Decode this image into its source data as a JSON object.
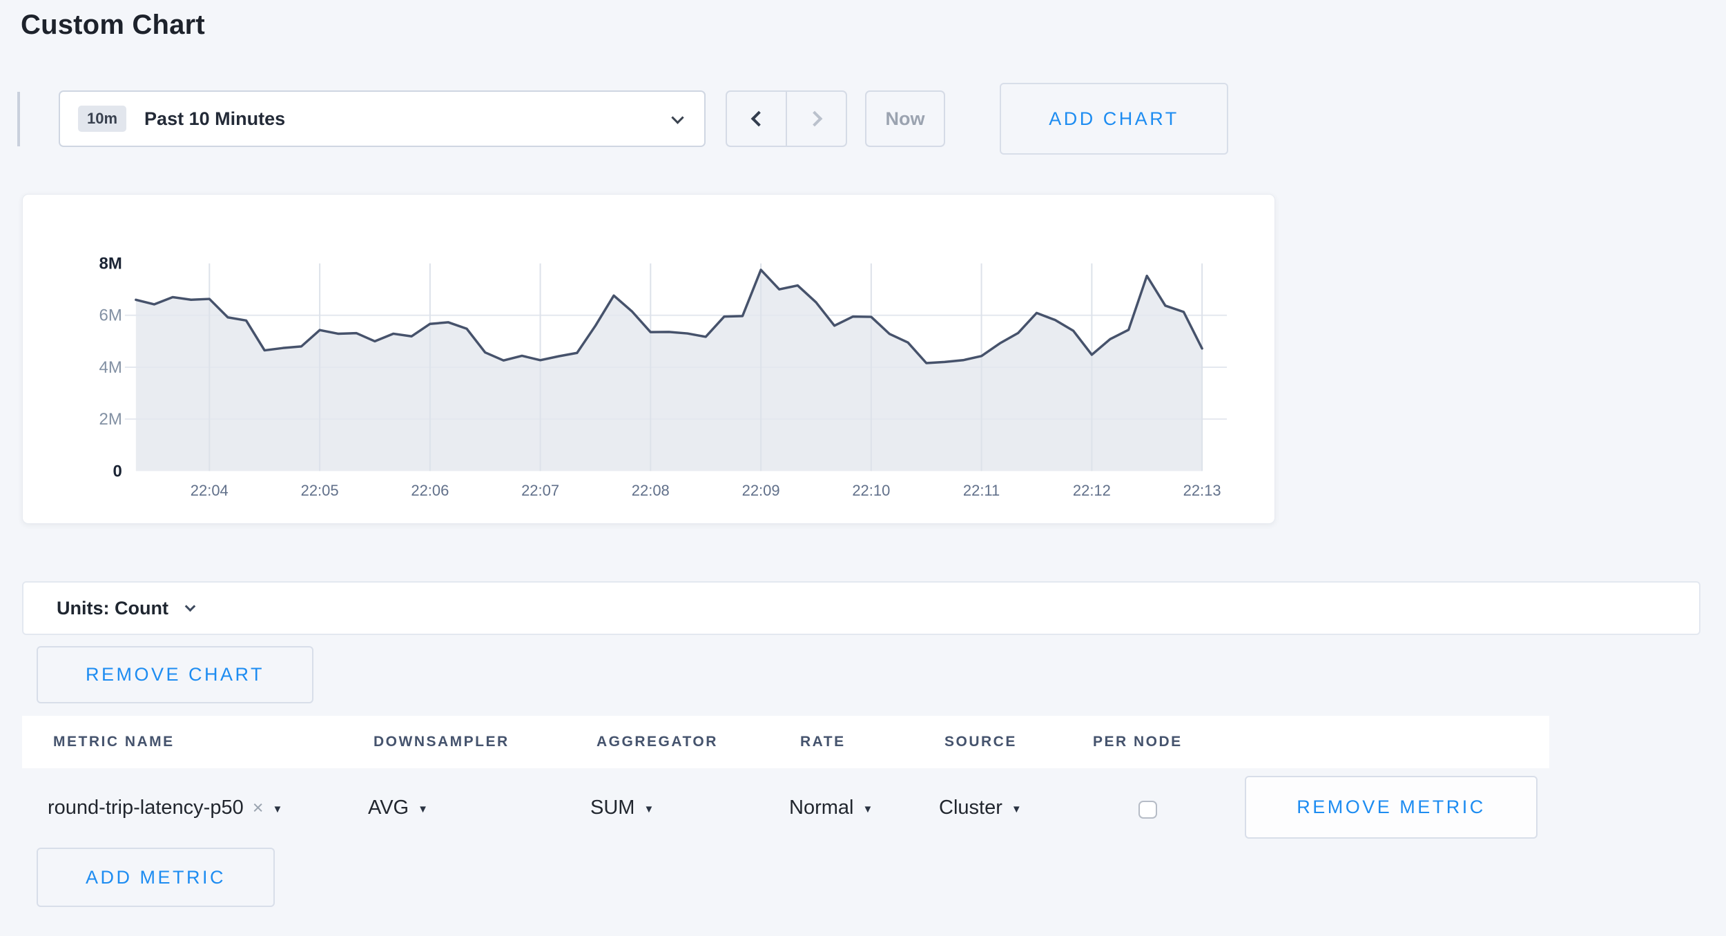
{
  "page": {
    "title": "Custom Chart",
    "accent_color": "#1d8cf1",
    "background_color": "#f4f6fa"
  },
  "icons": {
    "caret_down": "▼",
    "clear": "×"
  },
  "toolbar": {
    "time_range": {
      "badge": "10m",
      "label": "Past 10 Minutes"
    },
    "now_label": "Now",
    "add_chart_label": "ADD CHART"
  },
  "units_bar": {
    "label": "Units: Count"
  },
  "remove_chart_label": "REMOVE CHART",
  "metrics_table": {
    "columns": [
      "METRIC NAME",
      "DOWNSAMPLER",
      "AGGREGATOR",
      "RATE",
      "SOURCE",
      "PER NODE"
    ],
    "rows": [
      {
        "metric_name": "round-trip-latency-p50",
        "downsampler": "AVG",
        "aggregator": "SUM",
        "rate": "Normal",
        "source": "Cluster",
        "per_node_checked": false,
        "remove_label": "REMOVE METRIC"
      }
    ],
    "add_metric_label": "ADD METRIC"
  },
  "chart_data": {
    "type": "area",
    "title": "",
    "xlabel": "",
    "ylabel": "count",
    "unit": "millions",
    "y_max": 8,
    "y_grid": [
      2,
      4,
      6
    ],
    "y_tick_labels": [
      {
        "label": "8M",
        "value": 8,
        "strong": true
      },
      {
        "label": "6M",
        "value": 6,
        "strong": false
      },
      {
        "label": "4M",
        "value": 4,
        "strong": false
      },
      {
        "label": "2M",
        "value": 2,
        "strong": false
      },
      {
        "label": "0",
        "value": 0,
        "strong": true
      }
    ],
    "x_ticks": [
      {
        "label": "22:04",
        "time": "22:04:00"
      },
      {
        "label": "22:05",
        "time": "22:05:00"
      },
      {
        "label": "22:06",
        "time": "22:06:00"
      },
      {
        "label": "22:07",
        "time": "22:07:00"
      },
      {
        "label": "22:08",
        "time": "22:08:00"
      },
      {
        "label": "22:09",
        "time": "22:09:00"
      },
      {
        "label": "22:10",
        "time": "22:10:00"
      },
      {
        "label": "22:11",
        "time": "22:11:00"
      },
      {
        "label": "22:12",
        "time": "22:12:00"
      },
      {
        "label": "22:13",
        "time": "22:13:00"
      }
    ],
    "x": [
      "22:03:20",
      "22:03:30",
      "22:03:40",
      "22:03:50",
      "22:04:00",
      "22:04:10",
      "22:04:20",
      "22:04:30",
      "22:04:40",
      "22:04:50",
      "22:05:00",
      "22:05:10",
      "22:05:20",
      "22:05:30",
      "22:05:40",
      "22:05:50",
      "22:06:00",
      "22:06:10",
      "22:06:20",
      "22:06:30",
      "22:06:40",
      "22:06:50",
      "22:07:00",
      "22:07:10",
      "22:07:20",
      "22:07:30",
      "22:07:40",
      "22:07:50",
      "22:08:00",
      "22:08:10",
      "22:08:20",
      "22:08:30",
      "22:08:40",
      "22:08:50",
      "22:09:00",
      "22:09:10",
      "22:09:20",
      "22:09:30",
      "22:09:40",
      "22:09:50",
      "22:10:00",
      "22:10:10",
      "22:10:20",
      "22:10:30",
      "22:10:40",
      "22:10:50",
      "22:11:00",
      "22:11:10",
      "22:11:20",
      "22:11:30",
      "22:11:40",
      "22:11:50",
      "22:12:00",
      "22:12:10",
      "22:12:20",
      "22:12:30",
      "22:12:40",
      "22:12:50",
      "22:13:00"
    ],
    "values_millions": [
      6.6,
      6.42,
      6.7,
      6.6,
      6.63,
      5.92,
      5.8,
      4.65,
      4.74,
      4.8,
      5.43,
      5.29,
      5.31,
      5.0,
      5.29,
      5.19,
      5.67,
      5.73,
      5.48,
      4.57,
      4.26,
      4.44,
      4.27,
      4.42,
      4.55,
      5.6,
      6.76,
      6.14,
      5.35,
      5.36,
      5.3,
      5.17,
      5.95,
      5.97,
      7.75,
      7.0,
      7.15,
      6.5,
      5.6,
      5.95,
      5.94,
      5.28,
      4.95,
      4.16,
      4.2,
      4.27,
      4.43,
      4.92,
      5.32,
      6.09,
      5.82,
      5.4,
      4.48,
      5.08,
      5.44,
      7.52,
      6.37,
      6.13,
      4.72
    ],
    "colors": {
      "line": "#46526b",
      "fill": "#e9ecf1",
      "grid_v": "#dde2ea",
      "grid_h": "#e4e8ef",
      "axis_strong": "#1b2434",
      "axis_muted": "#8290a3",
      "axis_x": "#61708a"
    },
    "legend": "none",
    "grid": "on"
  }
}
